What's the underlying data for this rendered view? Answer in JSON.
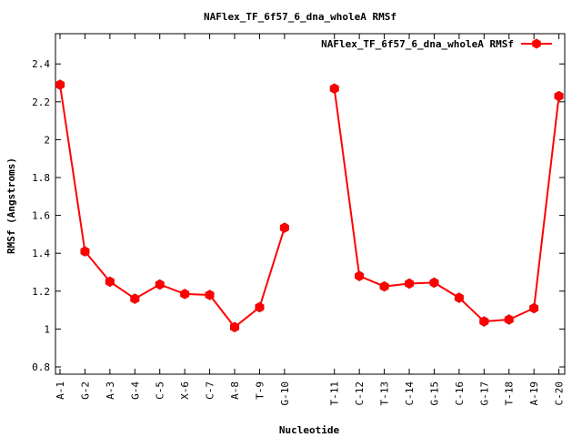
{
  "chart_data": {
    "type": "line",
    "title": "NAFlex_TF_6f57_6_dna_wholeA RMSf",
    "xlabel": "Nucleotide",
    "ylabel": "RMSf (Angstroms)",
    "ylim": [
      0.75,
      2.55
    ],
    "yticks": [
      "0.8",
      "1",
      "1.2",
      "1.4",
      "1.6",
      "1.8",
      "2",
      "2.2",
      "2.4"
    ],
    "grid": false,
    "legend_position": "top-right",
    "series": [
      {
        "name": "NAFlex_TF_6f57_6_dna_wholeA RMSf",
        "color": "#ff0000",
        "marker": "hexagon",
        "segments": [
          {
            "labels": [
              "A-1",
              "G-2",
              "A-3",
              "G-4",
              "C-5",
              "X-6",
              "C-7",
              "A-8",
              "T-9",
              "G-10"
            ],
            "values": [
              2.29,
              1.41,
              1.25,
              1.16,
              1.235,
              1.185,
              1.18,
              1.01,
              1.115,
              1.535
            ]
          },
          {
            "labels": [
              "T-11",
              "C-12",
              "T-13",
              "C-14",
              "G-15",
              "C-16",
              "G-17",
              "T-18",
              "A-19",
              "C-20"
            ],
            "values": [
              2.27,
              1.28,
              1.225,
              1.24,
              1.245,
              1.165,
              1.04,
              1.05,
              1.11,
              2.23
            ]
          }
        ]
      }
    ]
  }
}
